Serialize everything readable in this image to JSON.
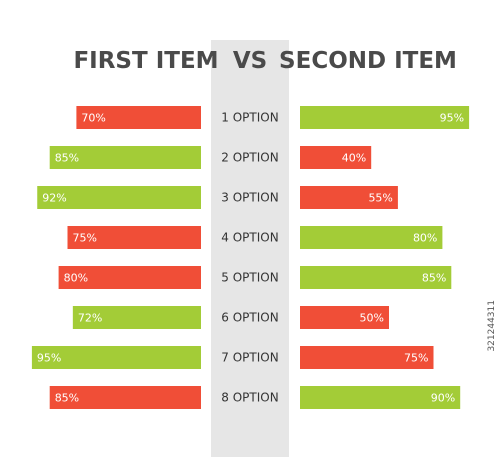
{
  "chart_data": {
    "type": "bar",
    "title": "VS",
    "left_title": "FIRST ITEM",
    "right_title": "SECOND ITEM",
    "categories": [
      "1 OPTION",
      "2 OPTION",
      "3 OPTION",
      "4 OPTION",
      "5 OPTION",
      "6 OPTION",
      "7 OPTION",
      "8 OPTION"
    ],
    "series": [
      {
        "name": "FIRST ITEM",
        "values": [
          70,
          85,
          92,
          75,
          80,
          72,
          95,
          85
        ],
        "labels": [
          "70%",
          "85%",
          "92%",
          "75%",
          "80%",
          "72%",
          "95%",
          "85%"
        ],
        "colors": [
          "#f04e37",
          "#a3cc37",
          "#a3cc37",
          "#f04e37",
          "#f04e37",
          "#a3cc37",
          "#a3cc37",
          "#f04e37"
        ]
      },
      {
        "name": "SECOND ITEM",
        "values": [
          95,
          40,
          55,
          80,
          85,
          50,
          75,
          90
        ],
        "labels": [
          "95%",
          "40%",
          "55%",
          "80%",
          "85%",
          "50%",
          "75%",
          "90%"
        ],
        "colors": [
          "#a3cc37",
          "#f04e37",
          "#f04e37",
          "#a3cc37",
          "#a3cc37",
          "#f04e37",
          "#f04e37",
          "#a3cc37"
        ]
      }
    ],
    "colors": {
      "red": "#f04e37",
      "green": "#a3cc37",
      "center_panel": "#e6e6e6",
      "title_text": "#4a4a4a"
    }
  },
  "watermark": "321244311"
}
